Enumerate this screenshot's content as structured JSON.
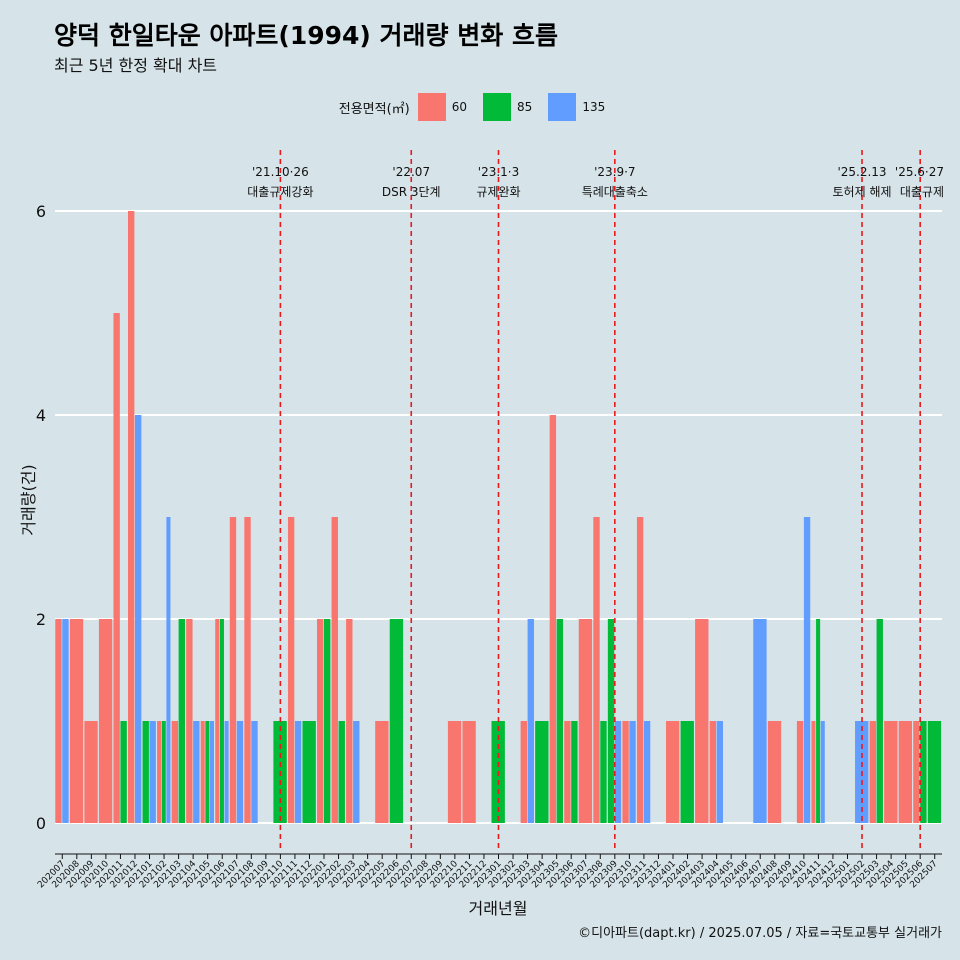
{
  "title": "양덕 한일타운 아파트(1994) 거래량 변화 흐름",
  "subtitle": "최근 5년 한정 확대 차트",
  "credit": "©디아파트(dapt.kr) / 2025.07.05 / 자료=국토교통부 실거래가",
  "colors": {
    "s60": "#F8766D",
    "s85": "#00BA38",
    "s135": "#619CFF",
    "grid": "#ffffff",
    "event": "#e8191c"
  },
  "chart_data": {
    "type": "bar",
    "xlabel": "거래년월",
    "ylabel": "거래량(건)",
    "ylim": [
      0,
      6
    ],
    "yticks": [
      0,
      2,
      4,
      6
    ],
    "legend": {
      "title": "전용면적(㎡)",
      "position": "top"
    },
    "months": [
      "202007",
      "202008",
      "202009",
      "202010",
      "202011",
      "202012",
      "202101",
      "202102",
      "202103",
      "202104",
      "202105",
      "202106",
      "202107",
      "202108",
      "202109",
      "202110",
      "202111",
      "202112",
      "202201",
      "202202",
      "202203",
      "202204",
      "202205",
      "202206",
      "202207",
      "202208",
      "202209",
      "202210",
      "202211",
      "202212",
      "202301",
      "202302",
      "202303",
      "202304",
      "202305",
      "202306",
      "202307",
      "202308",
      "202309",
      "202310",
      "202311",
      "202312",
      "202401",
      "202402",
      "202403",
      "202404",
      "202405",
      "202406",
      "202407",
      "202408",
      "202409",
      "202410",
      "202411",
      "202412",
      "202501",
      "202502",
      "202503",
      "202504",
      "202505",
      "202506",
      "202507"
    ],
    "series": [
      {
        "name": "60",
        "color": "#F8766D",
        "points": [
          [
            "202007",
            2
          ],
          [
            "202008",
            2
          ],
          [
            "202009",
            1
          ],
          [
            "202010",
            2
          ],
          [
            "202011",
            5
          ],
          [
            "202012",
            6
          ],
          [
            "202102",
            1
          ],
          [
            "202103",
            1
          ],
          [
            "202104",
            2
          ],
          [
            "202105",
            1
          ],
          [
            "202106",
            2
          ],
          [
            "202107",
            3
          ],
          [
            "202108",
            3
          ],
          [
            "202111",
            3
          ],
          [
            "202201",
            2
          ],
          [
            "202202",
            3
          ],
          [
            "202203",
            2
          ],
          [
            "202205",
            1
          ],
          [
            "202210",
            1
          ],
          [
            "202211",
            1
          ],
          [
            "202303",
            1
          ],
          [
            "202305",
            4
          ],
          [
            "202306",
            1
          ],
          [
            "202307",
            2
          ],
          [
            "202308",
            3
          ],
          [
            "202310",
            1
          ],
          [
            "202311",
            3
          ],
          [
            "202401",
            1
          ],
          [
            "202403",
            2
          ],
          [
            "202404",
            1
          ],
          [
            "202408",
            1
          ],
          [
            "202410",
            1
          ],
          [
            "202411",
            1
          ],
          [
            "202503",
            1
          ],
          [
            "202504",
            1
          ],
          [
            "202505",
            1
          ],
          [
            "202506",
            1
          ]
        ]
      },
      {
        "name": "85",
        "color": "#00BA38",
        "points": [
          [
            "202011",
            1
          ],
          [
            "202101",
            1
          ],
          [
            "202102",
            1
          ],
          [
            "202103",
            2
          ],
          [
            "202105",
            1
          ],
          [
            "202106",
            2
          ],
          [
            "202110",
            1
          ],
          [
            "202112",
            1
          ],
          [
            "202201",
            2
          ],
          [
            "202202",
            1
          ],
          [
            "202206",
            2
          ],
          [
            "202301",
            1
          ],
          [
            "202304",
            1
          ],
          [
            "202305",
            2
          ],
          [
            "202306",
            1
          ],
          [
            "202308",
            1
          ],
          [
            "202309",
            2
          ],
          [
            "202402",
            1
          ],
          [
            "202411",
            2
          ],
          [
            "202503",
            2
          ],
          [
            "202506",
            1
          ],
          [
            "202507",
            1
          ]
        ]
      },
      {
        "name": "135",
        "color": "#619CFF",
        "points": [
          [
            "202007",
            2
          ],
          [
            "202012",
            4
          ],
          [
            "202101",
            1
          ],
          [
            "202102",
            3
          ],
          [
            "202104",
            1
          ],
          [
            "202105",
            1
          ],
          [
            "202106",
            1
          ],
          [
            "202107",
            1
          ],
          [
            "202108",
            1
          ],
          [
            "202111",
            1
          ],
          [
            "202203",
            1
          ],
          [
            "202303",
            2
          ],
          [
            "202309",
            1
          ],
          [
            "202310",
            1
          ],
          [
            "202311",
            1
          ],
          [
            "202404",
            1
          ],
          [
            "202407",
            2
          ],
          [
            "202410",
            3
          ],
          [
            "202411",
            1
          ],
          [
            "202502",
            1
          ]
        ]
      }
    ],
    "events": [
      {
        "month": "202110",
        "date": "'21.10·26",
        "label": "대출규제강화"
      },
      {
        "month": "202207",
        "date": "'22.07",
        "label": "DSR 3단계"
      },
      {
        "month": "202301",
        "date": "'23.1·3",
        "label": "규제완화"
      },
      {
        "month": "202309",
        "date": "'23.9·7",
        "label": "특례대출축소"
      },
      {
        "month": "202502",
        "date": "'25.2.13",
        "label": "토허제 해제"
      },
      {
        "month": "202506",
        "date": "'25.6·27",
        "label": "대출규제"
      }
    ]
  }
}
